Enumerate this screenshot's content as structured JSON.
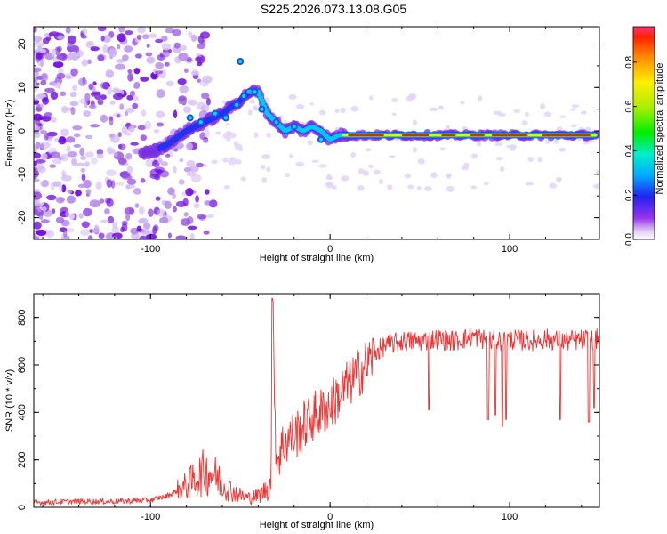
{
  "title": "S225.2026.073.13.08.G05",
  "chart_data": [
    {
      "type": "heatmap",
      "title": "S225.2026.073.13.08.G05",
      "xlabel": "Height of straight line (km)",
      "ylabel": "Frequency (Hz)",
      "xlim": [
        -165,
        150
      ],
      "ylim": [
        -25,
        24
      ],
      "xticks": [
        -100,
        0,
        100
      ],
      "yticks": [
        -20,
        -10,
        0,
        10,
        20
      ],
      "colorbar": {
        "label": "Normalized spectral amplitude",
        "range": [
          0,
          0.96
        ],
        "ticks": [
          0.0,
          0.2,
          0.4,
          0.6,
          0.8
        ]
      },
      "ridge": {
        "x": [
          -100,
          -90,
          -80,
          -70,
          -60,
          -50,
          -45,
          -40,
          -38,
          -35,
          -30,
          -25,
          -20,
          -15,
          -10,
          -5,
          0,
          5,
          10,
          150
        ],
        "y": [
          -5,
          -3,
          0,
          2,
          4,
          7,
          9,
          9,
          7,
          4,
          2,
          0,
          1,
          0,
          1,
          0,
          -2,
          -1,
          -1,
          -1
        ]
      }
    },
    {
      "type": "line",
      "xlabel": "Height of straight line (km)",
      "ylabel": "SNR (10 * v/v)",
      "xlim": [
        -165,
        150
      ],
      "ylim": [
        0,
        900
      ],
      "xticks": [
        -100,
        0,
        100
      ],
      "yticks": [
        0,
        200,
        400,
        600,
        800
      ],
      "series": [
        {
          "name": "SNR",
          "color": "#ee3333",
          "x": [
            -165,
            -140,
            -120,
            -100,
            -90,
            -80,
            -75,
            -70,
            -65,
            -60,
            -55,
            -50,
            -45,
            -40,
            -36,
            -33,
            -32,
            -30,
            -25,
            -20,
            -15,
            -10,
            -5,
            0,
            5,
            10,
            15,
            20,
            25,
            30,
            40,
            50,
            60,
            70,
            80,
            90,
            100,
            110,
            120,
            130,
            140,
            150
          ],
          "y": [
            20,
            25,
            25,
            30,
            50,
            90,
            120,
            150,
            140,
            100,
            70,
            50,
            40,
            50,
            70,
            100,
            880,
            200,
            280,
            300,
            340,
            380,
            400,
            430,
            470,
            520,
            560,
            600,
            650,
            680,
            700,
            700,
            710,
            700,
            720,
            700,
            710,
            700,
            710,
            700,
            705,
            710
          ]
        }
      ],
      "dips": [
        {
          "x": 55,
          "y": 410
        },
        {
          "x": 88,
          "y": 370
        },
        {
          "x": 92,
          "y": 390
        },
        {
          "x": 96,
          "y": 340
        },
        {
          "x": 98,
          "y": 370
        },
        {
          "x": 128,
          "y": 370
        },
        {
          "x": 144,
          "y": 360
        },
        {
          "x": 147,
          "y": 420
        }
      ]
    }
  ]
}
